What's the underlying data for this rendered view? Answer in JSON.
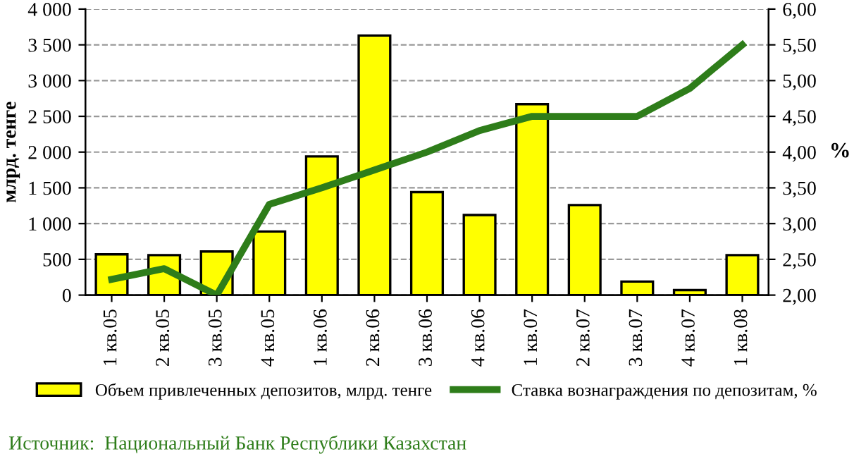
{
  "chart_data": {
    "type": "bar",
    "categories": [
      "1 кв.05",
      "2 кв.05",
      "3 кв.05",
      "4 кв.05",
      "1 кв.06",
      "2 кв.06",
      "3 кв.06",
      "4 кв.06",
      "1 кв.07",
      "2 кв.07",
      "3 кв.07",
      "4 кв.07",
      "1 кв.08"
    ],
    "series": [
      {
        "name": "Объем привлеченных депозитов, млрд. тенге",
        "color": "#ffff00",
        "values": [
          570,
          560,
          610,
          890,
          1940,
          3630,
          1440,
          1120,
          2670,
          1260,
          190,
          70,
          560
        ]
      },
      {
        "name": "Ставка вознаграждения по депозитам, %",
        "type": "line",
        "axis": "y2",
        "color": "#2e7d1a",
        "values": [
          2.22,
          2.37,
          2.0,
          3.27,
          3.5,
          3.75,
          4.0,
          4.3,
          4.5,
          4.5,
          4.5,
          4.89,
          5.5
        ]
      }
    ],
    "ylabel": "млрд. тенге",
    "y2label": "%",
    "ylim": [
      0,
      4000
    ],
    "yticks": [
      {
        "value": 0,
        "label": "0"
      },
      {
        "value": 500,
        "label": "500"
      },
      {
        "value": 1000,
        "label": "1 000"
      },
      {
        "value": 1500,
        "label": "1 500"
      },
      {
        "value": 2000,
        "label": "2 000"
      },
      {
        "value": 2500,
        "label": "2 500"
      },
      {
        "value": 3000,
        "label": "3 000"
      },
      {
        "value": 3500,
        "label": "3 500"
      },
      {
        "value": 4000,
        "label": "4 000"
      }
    ],
    "y2lim": [
      2,
      6
    ],
    "y2ticks": [
      {
        "value": 2,
        "label": "2,00"
      },
      {
        "value": 2.5,
        "label": "2,50"
      },
      {
        "value": 3,
        "label": "3,00"
      },
      {
        "value": 3.5,
        "label": "3,50"
      },
      {
        "value": 4,
        "label": "4,00"
      },
      {
        "value": 4.5,
        "label": "4,50"
      },
      {
        "value": 5,
        "label": "5,00"
      },
      {
        "value": 5.5,
        "label": "5,50"
      },
      {
        "value": 6,
        "label": "6,00"
      }
    ],
    "grid": "y",
    "legend": "bottom",
    "marker": "none",
    "line_style": "solid",
    "annotations": [
      "Источник:  Национальный Банк Республики Казахстан"
    ]
  }
}
